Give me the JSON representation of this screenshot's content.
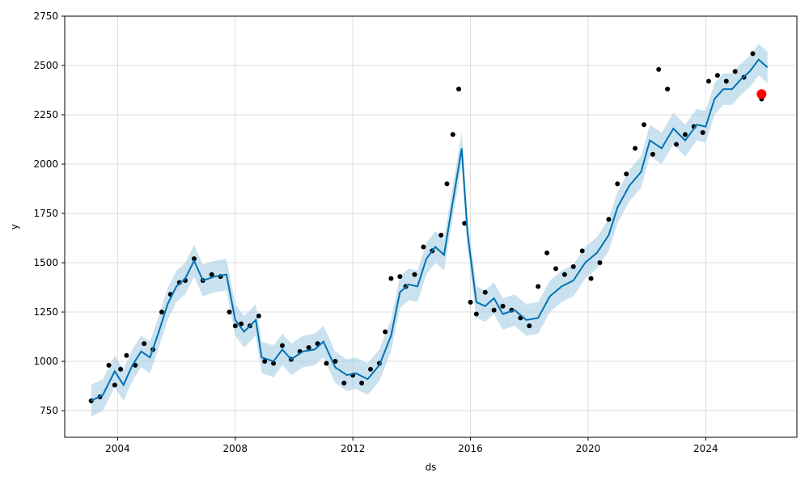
{
  "chart_data": {
    "type": "line",
    "title": "",
    "xlabel": "ds",
    "ylabel": "y",
    "xlim": [
      2002.2,
      2027.1
    ],
    "ylim": [
      615,
      2750
    ],
    "x_ticks": [
      2004,
      2008,
      2012,
      2016,
      2020,
      2024
    ],
    "x_tick_labels": [
      "2004",
      "2008",
      "2012",
      "2016",
      "2020",
      "2024"
    ],
    "y_ticks": [
      750,
      1000,
      1250,
      1500,
      1750,
      2000,
      2250,
      2500,
      2750
    ],
    "y_tick_labels": [
      "750",
      "1000",
      "1250",
      "1500",
      "1750",
      "2000",
      "2250",
      "2500",
      "2750"
    ],
    "grid": true,
    "colors": {
      "forecast": "#0072b2",
      "interval": "#9ecae1",
      "observed": "#000000",
      "highlight": "#ff0000"
    },
    "series": [
      {
        "role": "forecast",
        "x": [
          2003.1,
          2003.5,
          2003.9,
          2004.2,
          2004.5,
          2004.8,
          2005.1,
          2005.4,
          2005.7,
          2006.0,
          2006.3,
          2006.6,
          2006.9,
          2007.3,
          2007.7,
          2008.0,
          2008.3,
          2008.7,
          2008.9,
          2009.3,
          2009.6,
          2009.9,
          2010.3,
          2010.7,
          2011.0,
          2011.4,
          2011.8,
          2012.1,
          2012.5,
          2012.9,
          2013.3,
          2013.6,
          2013.9,
          2014.2,
          2014.5,
          2014.8,
          2015.1,
          2015.3,
          2015.5,
          2015.7,
          2015.9,
          2016.2,
          2016.5,
          2016.8,
          2017.1,
          2017.5,
          2017.9,
          2018.3,
          2018.7,
          2019.1,
          2019.5,
          2019.9,
          2020.3,
          2020.7,
          2021.0,
          2021.4,
          2021.8,
          2022.1,
          2022.5,
          2022.9,
          2023.3,
          2023.7,
          2024.0,
          2024.3,
          2024.6,
          2024.9,
          2025.2,
          2025.5,
          2025.8,
          2026.1
        ],
        "y": [
          800,
          830,
          950,
          880,
          980,
          1050,
          1020,
          1150,
          1290,
          1380,
          1420,
          1510,
          1410,
          1430,
          1440,
          1210,
          1150,
          1210,
          1020,
          1000,
          1060,
          1010,
          1050,
          1060,
          1100,
          970,
          930,
          940,
          910,
          980,
          1130,
          1350,
          1390,
          1380,
          1520,
          1580,
          1540,
          1720,
          1900,
          2080,
          1650,
          1300,
          1280,
          1320,
          1240,
          1260,
          1210,
          1220,
          1330,
          1380,
          1410,
          1500,
          1550,
          1640,
          1780,
          1890,
          1960,
          2120,
          2080,
          2180,
          2120,
          2200,
          2190,
          2330,
          2380,
          2380,
          2430,
          2470,
          2530,
          2490
        ]
      },
      {
        "role": "observed",
        "x": [
          2003.1,
          2003.4,
          2003.7,
          2003.9,
          2004.1,
          2004.3,
          2004.6,
          2004.9,
          2005.2,
          2005.5,
          2005.8,
          2006.1,
          2006.3,
          2006.6,
          2006.9,
          2007.2,
          2007.5,
          2007.8,
          2008.0,
          2008.2,
          2008.5,
          2008.8,
          2009.0,
          2009.3,
          2009.6,
          2009.9,
          2010.2,
          2010.5,
          2010.8,
          2011.1,
          2011.4,
          2011.7,
          2012.0,
          2012.3,
          2012.6,
          2012.9,
          2013.1,
          2013.3,
          2013.6,
          2013.8,
          2014.1,
          2014.4,
          2014.7,
          2015.0,
          2015.2,
          2015.4,
          2015.6,
          2015.8,
          2016.0,
          2016.2,
          2016.5,
          2016.8,
          2017.1,
          2017.4,
          2017.7,
          2018.0,
          2018.3,
          2018.6,
          2018.9,
          2019.2,
          2019.5,
          2019.8,
          2020.1,
          2020.4,
          2020.7,
          2021.0,
          2021.3,
          2021.6,
          2021.9,
          2022.2,
          2022.4,
          2022.7,
          2023.0,
          2023.3,
          2023.6,
          2023.9,
          2024.1,
          2024.4,
          2024.7,
          2025.0,
          2025.3,
          2025.6,
          2025.9
        ],
        "y": [
          800,
          820,
          980,
          880,
          960,
          1030,
          980,
          1090,
          1060,
          1250,
          1340,
          1400,
          1410,
          1520,
          1410,
          1440,
          1430,
          1250,
          1180,
          1190,
          1180,
          1230,
          1000,
          990,
          1080,
          1010,
          1050,
          1070,
          1090,
          990,
          1000,
          890,
          930,
          890,
          960,
          990,
          1150,
          1420,
          1430,
          1380,
          1440,
          1580,
          1560,
          1640,
          1900,
          2150,
          2380,
          1700,
          1300,
          1240,
          1350,
          1260,
          1280,
          1260,
          1220,
          1180,
          1380,
          1550,
          1470,
          1440,
          1480,
          1560,
          1420,
          1500,
          1720,
          1900,
          1950,
          2080,
          2200,
          2050,
          2480,
          2380,
          2100,
          2150,
          2190,
          2160,
          2420,
          2450,
          2420,
          2470,
          2440,
          2560,
          2330
        ]
      },
      {
        "role": "highlight",
        "x": [
          2025.9
        ],
        "y": [
          2355
        ]
      }
    ],
    "interval": {
      "x": [
        2003.1,
        2003.5,
        2003.9,
        2004.2,
        2004.5,
        2004.8,
        2005.1,
        2005.4,
        2005.7,
        2006.0,
        2006.3,
        2006.6,
        2006.9,
        2007.3,
        2007.7,
        2008.0,
        2008.3,
        2008.7,
        2008.9,
        2009.3,
        2009.6,
        2009.9,
        2010.3,
        2010.7,
        2011.0,
        2011.4,
        2011.8,
        2012.1,
        2012.5,
        2012.9,
        2013.3,
        2013.6,
        2013.9,
        2014.2,
        2014.5,
        2014.8,
        2015.1,
        2015.3,
        2015.5,
        2015.7,
        2015.9,
        2016.2,
        2016.5,
        2016.8,
        2017.1,
        2017.5,
        2017.9,
        2018.3,
        2018.7,
        2019.1,
        2019.5,
        2019.9,
        2020.3,
        2020.7,
        2021.0,
        2021.4,
        2021.8,
        2022.1,
        2022.5,
        2022.9,
        2023.3,
        2023.7,
        2024.0,
        2024.3,
        2024.6,
        2024.9,
        2025.2,
        2025.5,
        2025.8,
        2026.1
      ],
      "lower": [
        720,
        750,
        870,
        800,
        900,
        970,
        940,
        1070,
        1210,
        1300,
        1340,
        1430,
        1330,
        1350,
        1360,
        1130,
        1070,
        1130,
        940,
        920,
        980,
        930,
        970,
        980,
        1020,
        890,
        850,
        860,
        830,
        900,
        1050,
        1270,
        1310,
        1300,
        1440,
        1500,
        1460,
        1640,
        1820,
        2000,
        1570,
        1220,
        1200,
        1240,
        1160,
        1180,
        1130,
        1140,
        1250,
        1300,
        1330,
        1420,
        1470,
        1560,
        1700,
        1810,
        1880,
        2040,
        2000,
        2100,
        2040,
        2120,
        2110,
        2250,
        2300,
        2300,
        2350,
        2390,
        2450,
        2410
      ],
      "upper": [
        880,
        910,
        1030,
        960,
        1060,
        1130,
        1100,
        1230,
        1370,
        1460,
        1500,
        1590,
        1490,
        1510,
        1520,
        1290,
        1230,
        1290,
        1100,
        1080,
        1140,
        1090,
        1130,
        1140,
        1180,
        1050,
        1010,
        1020,
        990,
        1060,
        1210,
        1430,
        1470,
        1460,
        1600,
        1660,
        1620,
        1800,
        1980,
        2160,
        1730,
        1380,
        1360,
        1400,
        1320,
        1340,
        1290,
        1300,
        1410,
        1460,
        1490,
        1580,
        1630,
        1720,
        1860,
        1970,
        2040,
        2200,
        2160,
        2260,
        2200,
        2280,
        2270,
        2410,
        2460,
        2460,
        2510,
        2550,
        2610,
        2570
      ]
    }
  }
}
